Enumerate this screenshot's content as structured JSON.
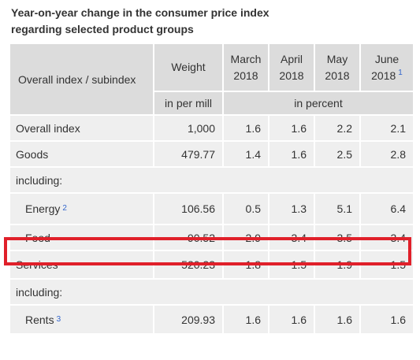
{
  "title_line1": "Year-on-year change in the consumer price index",
  "title_line2": "regarding selected product groups",
  "header": {
    "index_col": "Overall index / subindex",
    "weight": "Weight",
    "months": [
      {
        "line1": "March",
        "line2": "2018",
        "note": ""
      },
      {
        "line1": "April",
        "line2": "2018",
        "note": ""
      },
      {
        "line1": "May",
        "line2": "2018",
        "note": ""
      },
      {
        "line1": "June",
        "line2": "2018",
        "note": "1"
      }
    ],
    "weight_unit": "in per mill",
    "values_unit": "in percent"
  },
  "rows": [
    {
      "label": "Overall index",
      "note": "",
      "weight": "1,000",
      "values": [
        "1.6",
        "1.6",
        "2.2",
        "2.1"
      ]
    },
    {
      "label": "Goods",
      "note": "",
      "weight": "479.77",
      "values": [
        "1.4",
        "1.6",
        "2.5",
        "2.8"
      ]
    },
    {
      "label": "including:"
    },
    {
      "label": "Energy",
      "note": "2",
      "weight": "106.56",
      "values": [
        "0.5",
        "1.3",
        "5.1",
        "6.4"
      ]
    },
    {
      "label": "Food",
      "note": "",
      "weight": "90.52",
      "values": [
        "2.9",
        "3.4",
        "3.5",
        "3.4"
      ]
    },
    {
      "label": "Services",
      "note": "",
      "weight": "520.23",
      "values": [
        "1.8",
        "1.5",
        "1.9",
        "1.5"
      ]
    },
    {
      "label": "including:"
    },
    {
      "label": "Rents",
      "note": "3",
      "weight": "209.93",
      "values": [
        "1.6",
        "1.6",
        "1.6",
        "1.6"
      ]
    }
  ],
  "highlight_color": "#e0202a",
  "footnote_color": "#3366cc"
}
